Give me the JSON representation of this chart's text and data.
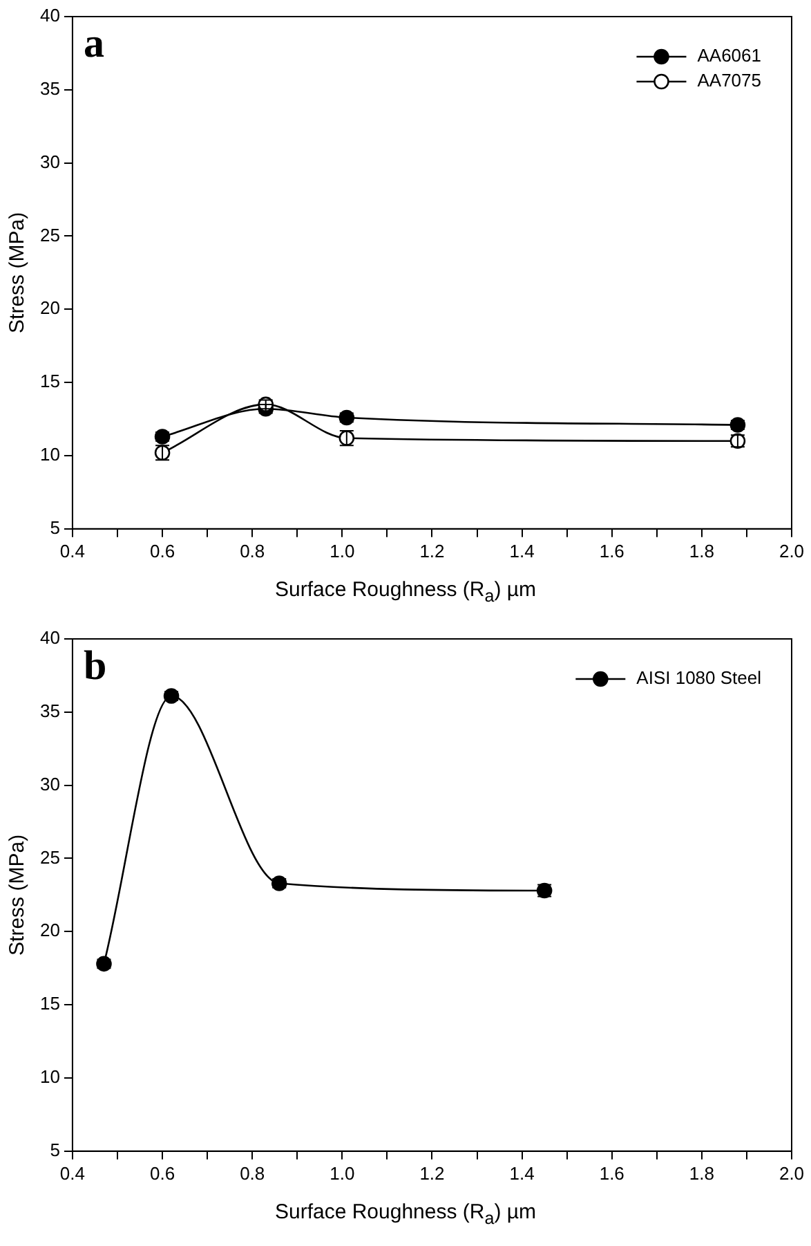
{
  "chart_data": [
    {
      "type": "line",
      "annotations": [
        "a"
      ],
      "xlabel": "Surface Roughness (R$_{a}$) µm",
      "ylabel": "Stress (MPa)",
      "xlim": [
        0.4,
        2.0
      ],
      "xticks": [
        0.4,
        {
          "value": 0.5,
          "label": null
        },
        0.6,
        {
          "value": 0.7,
          "label": null
        },
        0.8,
        {
          "value": 0.9,
          "label": null
        },
        "1.0",
        {
          "value": 1.1,
          "label": null
        },
        1.2,
        {
          "value": 1.3,
          "label": null
        },
        1.4,
        {
          "value": 1.5,
          "label": null
        },
        1.6,
        {
          "value": 1.7,
          "label": null
        },
        1.8,
        {
          "value": 1.9,
          "label": null
        },
        "2.0"
      ],
      "ylim": [
        5,
        40
      ],
      "yticks": [
        5,
        10,
        15,
        20,
        25,
        30,
        35,
        40
      ],
      "grid": false,
      "legend": "top right",
      "marker": "circle",
      "line_style": "solid",
      "series": [
        {
          "name": "AA6061",
          "color": "#000000",
          "x": [
            0.6,
            0.83,
            1.01,
            1.88
          ],
          "values": [
            11.3,
            13.2,
            12.6,
            12.1
          ],
          "errors": [
            0.3,
            0.3,
            0.3,
            0.3
          ]
        },
        {
          "name": "AA7075",
          "color": "#ffffff",
          "x": [
            0.6,
            0.83,
            1.01,
            1.88
          ],
          "values": [
            10.2,
            13.5,
            11.2,
            11.0
          ],
          "errors": [
            0.5,
            0.3,
            0.5,
            0.4
          ]
        }
      ]
    },
    {
      "type": "line",
      "annotations": [
        "b"
      ],
      "xlabel": "Surface Roughness (R$_{a}$) µm",
      "ylabel": "Stress (MPa)",
      "xlim": [
        0.4,
        2.0
      ],
      "xticks": [
        0.4,
        {
          "value": 0.5,
          "label": null
        },
        0.6,
        {
          "value": 0.7,
          "label": null
        },
        0.8,
        {
          "value": 0.9,
          "label": null
        },
        "1.0",
        {
          "value": 1.1,
          "label": null
        },
        1.2,
        {
          "value": 1.3,
          "label": null
        },
        1.4,
        {
          "value": 1.5,
          "label": null
        },
        1.6,
        {
          "value": 1.7,
          "label": null
        },
        1.8,
        {
          "value": 1.9,
          "label": null
        },
        "2.0"
      ],
      "ylim": [
        5,
        40
      ],
      "yticks": [
        5,
        10,
        15,
        20,
        25,
        30,
        35,
        40
      ],
      "grid": false,
      "legend": "top right",
      "marker": "circle",
      "line_style": "solid",
      "series": [
        {
          "name": "AISI 1080 Steel",
          "color": "#000000",
          "x": [
            0.47,
            0.62,
            0.86,
            1.45
          ],
          "values": [
            17.8,
            36.1,
            23.3,
            22.8
          ],
          "errors": [
            0.3,
            0.3,
            0.3,
            0.4
          ]
        }
      ]
    }
  ]
}
